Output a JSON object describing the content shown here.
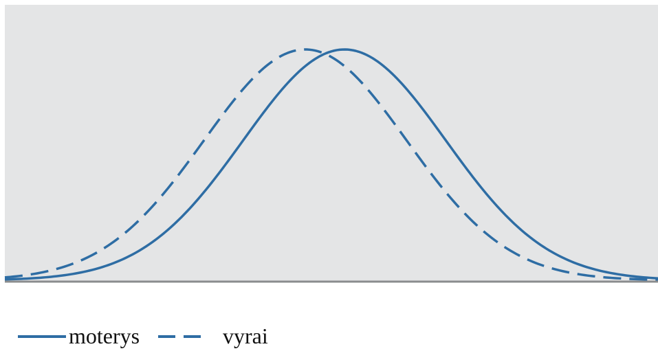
{
  "chart_data": {
    "type": "line",
    "title": "",
    "xlabel": "",
    "ylabel": "",
    "x_range": [
      0,
      10
    ],
    "y_range": [
      0,
      1
    ],
    "grid": false,
    "axes_ticks": false,
    "legend": {
      "placement": "bottom-left"
    },
    "colors": {
      "line": "#2e6da4",
      "plot_background": "#e4e5e6",
      "baseline": "#8a8c8e"
    },
    "series": [
      {
        "name": "moterys",
        "style": "solid",
        "curve": "normal",
        "mean": 5.2,
        "sd": 1.55,
        "peak": 1.0
      },
      {
        "name": "vyrai",
        "style": "dashed",
        "curve": "normal",
        "mean": 4.6,
        "sd": 1.55,
        "peak": 1.0
      }
    ]
  }
}
